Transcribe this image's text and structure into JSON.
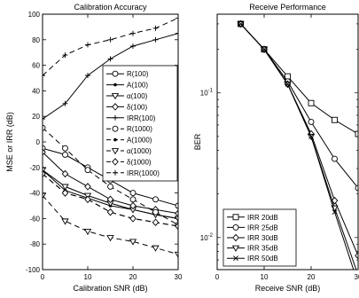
{
  "chart_data": [
    {
      "type": "line",
      "title": "Calibration Accuracy",
      "xlabel": "Calibration SNR (dB)",
      "ylabel": "MSE or IRR (dB)",
      "xlim": [
        0,
        30
      ],
      "ylim": [
        -100,
        100
      ],
      "xticks": [
        "0",
        "10",
        "20",
        "30"
      ],
      "yticks": [
        "-100",
        "-80",
        "-60",
        "-40",
        "-20",
        "0",
        "20",
        "40",
        "60",
        "80",
        "100"
      ],
      "grid": false,
      "legend_position": "right",
      "series": [
        {
          "name": "R(100)",
          "marker": "circle",
          "dash": "solid",
          "x": [
            0,
            5,
            10,
            15,
            20,
            25,
            30
          ],
          "y": [
            -5,
            -10,
            -20,
            -30,
            -40,
            -45,
            -50
          ]
        },
        {
          "name": "A(100)",
          "marker": "dot",
          "dash": "solid",
          "x": [
            0,
            5,
            10,
            15,
            20,
            25,
            30
          ],
          "y": [
            -22,
            -38,
            -44,
            -50,
            -53,
            -57,
            -60
          ]
        },
        {
          "name": "α(100)",
          "marker": "triangle-down",
          "dash": "solid",
          "x": [
            0,
            5,
            10,
            15,
            20,
            25,
            30
          ],
          "y": [
            -22,
            -35,
            -42,
            -48,
            -53,
            -57,
            -60
          ]
        },
        {
          "name": "δ(100)",
          "marker": "diamond",
          "dash": "solid",
          "x": [
            0,
            5,
            10,
            15,
            20,
            25,
            30
          ],
          "y": [
            -8,
            -25,
            -35,
            -45,
            -50,
            -53,
            -56
          ]
        },
        {
          "name": "IRR(100)",
          "marker": "plus",
          "dash": "solid",
          "x": [
            0,
            5,
            10,
            15,
            20,
            25,
            30
          ],
          "y": [
            18,
            30,
            52,
            65,
            75,
            80,
            85
          ]
        },
        {
          "name": "R(1000)",
          "marker": "circle",
          "dash": "dashed",
          "x": [
            0,
            5,
            10,
            15,
            20,
            25,
            30
          ],
          "y": [
            11,
            -5,
            -22,
            -35,
            -45,
            -55,
            -65
          ]
        },
        {
          "name": "A(1000)",
          "marker": "dot",
          "dash": "dashed",
          "x": [
            0,
            5,
            10,
            15,
            20,
            25,
            30
          ],
          "y": [
            -25,
            -40,
            -45,
            -55,
            -60,
            -63,
            -66
          ]
        },
        {
          "name": "α(1000)",
          "marker": "triangle-down",
          "dash": "dashed",
          "x": [
            0,
            5,
            10,
            15,
            20,
            25,
            30
          ],
          "y": [
            -42,
            -62,
            -70,
            -75,
            -78,
            -83,
            -88
          ]
        },
        {
          "name": "δ(1000)",
          "marker": "diamond",
          "dash": "dashed",
          "x": [
            0,
            5,
            10,
            15,
            20,
            25,
            30
          ],
          "y": [
            -25,
            -40,
            -45,
            -55,
            -60,
            -63,
            -66
          ]
        },
        {
          "name": "IRR(1000)",
          "marker": "plus",
          "dash": "dashed",
          "x": [
            0,
            5,
            10,
            15,
            20,
            25,
            30
          ],
          "y": [
            52,
            68,
            76,
            80,
            85,
            89,
            97
          ]
        }
      ]
    },
    {
      "type": "line",
      "title": "Receive Performance",
      "xlabel": "Receive SNR (dB)",
      "ylabel": "BER",
      "y_scale": "log",
      "xlim": [
        0,
        30
      ],
      "ylim": [
        0.006,
        0.35
      ],
      "xticks": [
        "0",
        "10",
        "20",
        "30"
      ],
      "yticks": [
        {
          "value": 0.1,
          "base": "10",
          "exp": "-1"
        },
        {
          "value": 0.01,
          "base": "10",
          "exp": "-2"
        }
      ],
      "grid": false,
      "legend_position": "bottom-left",
      "series": [
        {
          "name": "IRR 20dB",
          "marker": "square",
          "x": [
            5,
            10,
            15,
            20,
            25,
            30
          ],
          "y": [
            0.3,
            0.2,
            0.13,
            0.085,
            0.065,
            0.052
          ]
        },
        {
          "name": "IRR 25dB",
          "marker": "circle",
          "x": [
            5,
            10,
            15,
            20,
            25,
            30
          ],
          "y": [
            0.3,
            0.2,
            0.12,
            0.063,
            0.035,
            0.022
          ]
        },
        {
          "name": "IRR 30dB",
          "marker": "diamond",
          "x": [
            5,
            10,
            15,
            20,
            25,
            30
          ],
          "y": [
            0.3,
            0.2,
            0.115,
            0.052,
            0.018,
            0.0075
          ]
        },
        {
          "name": "IRR 35dB",
          "marker": "triangle-down",
          "x": [
            5,
            10,
            15,
            20,
            25,
            30
          ],
          "y": [
            0.3,
            0.2,
            0.115,
            0.05,
            0.016,
            0.0055
          ]
        },
        {
          "name": "IRR 50dB",
          "marker": "x",
          "x": [
            5,
            10,
            15,
            20,
            25,
            30
          ],
          "y": [
            0.3,
            0.2,
            0.115,
            0.05,
            0.015,
            0.0048
          ]
        }
      ]
    }
  ]
}
